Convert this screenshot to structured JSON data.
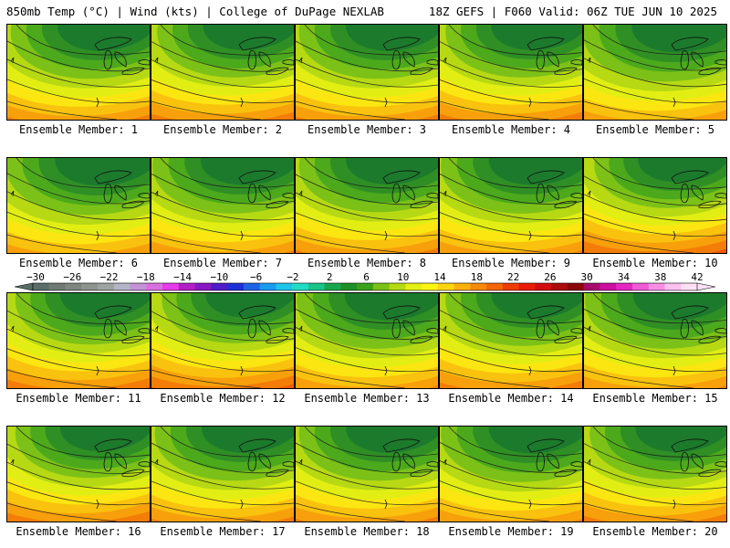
{
  "header": {
    "left_title": "850mb Temp (°C) | Wind (kts) | College of DuPage NEXLAB",
    "right_title": "18Z GEFS | F060 Valid: 06Z TUE JUN 10 2025"
  },
  "panels": [
    {
      "label": "Ensemble Member: 1",
      "warmth": 0.0
    },
    {
      "label": "Ensemble Member: 2",
      "warmth": 0.1
    },
    {
      "label": "Ensemble Member: 3",
      "warmth": 0.0
    },
    {
      "label": "Ensemble Member: 4",
      "warmth": 0.1
    },
    {
      "label": "Ensemble Member: 5",
      "warmth": -0.2
    },
    {
      "label": "Ensemble Member: 6",
      "warmth": -0.2
    },
    {
      "label": "Ensemble Member: 7",
      "warmth": -0.1
    },
    {
      "label": "Ensemble Member: 8",
      "warmth": 0.0
    },
    {
      "label": "Ensemble Member: 9",
      "warmth": -0.1
    },
    {
      "label": "Ensemble Member: 10",
      "warmth": 0.3
    },
    {
      "label": "Ensemble Member: 11",
      "warmth": 0.2
    },
    {
      "label": "Ensemble Member: 12",
      "warmth": 0.3
    },
    {
      "label": "Ensemble Member: 13",
      "warmth": -0.1
    },
    {
      "label": "Ensemble Member: 14",
      "warmth": 0.1
    },
    {
      "label": "Ensemble Member: 15",
      "warmth": -0.1
    },
    {
      "label": "Ensemble Member: 16",
      "warmth": 0.2
    },
    {
      "label": "Ensemble Member: 17",
      "warmth": 0.0
    },
    {
      "label": "Ensemble Member: 18",
      "warmth": 0.0
    },
    {
      "label": "Ensemble Member: 19",
      "warmth": -0.1
    },
    {
      "label": "Ensemble Member: 20",
      "warmth": 0.1
    }
  ],
  "colorbar": {
    "tick_labels": [
      "-30",
      "-26",
      "-22",
      "-18",
      "-14",
      "-10",
      "-6",
      "-2",
      "2",
      "6",
      "10",
      "14",
      "18",
      "22",
      "26",
      "30",
      "34",
      "38",
      "42"
    ],
    "colors": [
      "#5a6e69",
      "#6f7a74",
      "#7f8580",
      "#8e9390",
      "#9ca4a2",
      "#b5b5c8",
      "#c493d6",
      "#dc6fe0",
      "#e53be8",
      "#b41ec7",
      "#8818c2",
      "#4f1cc9",
      "#1f2fd6",
      "#1e63e6",
      "#199cf0",
      "#1ec4e9",
      "#22dcc6",
      "#19c48a",
      "#18a64c",
      "#1f9124",
      "#3ba21a",
      "#7cc117",
      "#b6d914",
      "#e6ef12",
      "#fbf611",
      "#fbd40f",
      "#f9b00c",
      "#f78a0a",
      "#f36507",
      "#ef3b05",
      "#e91b04",
      "#d20e0e",
      "#ac0c0c",
      "#8c0808",
      "#a9096c",
      "#cd0fa1",
      "#e426c3",
      "#f05ad6",
      "#f98ee4",
      "#fcc0f0",
      "#fde0f6"
    ]
  }
}
